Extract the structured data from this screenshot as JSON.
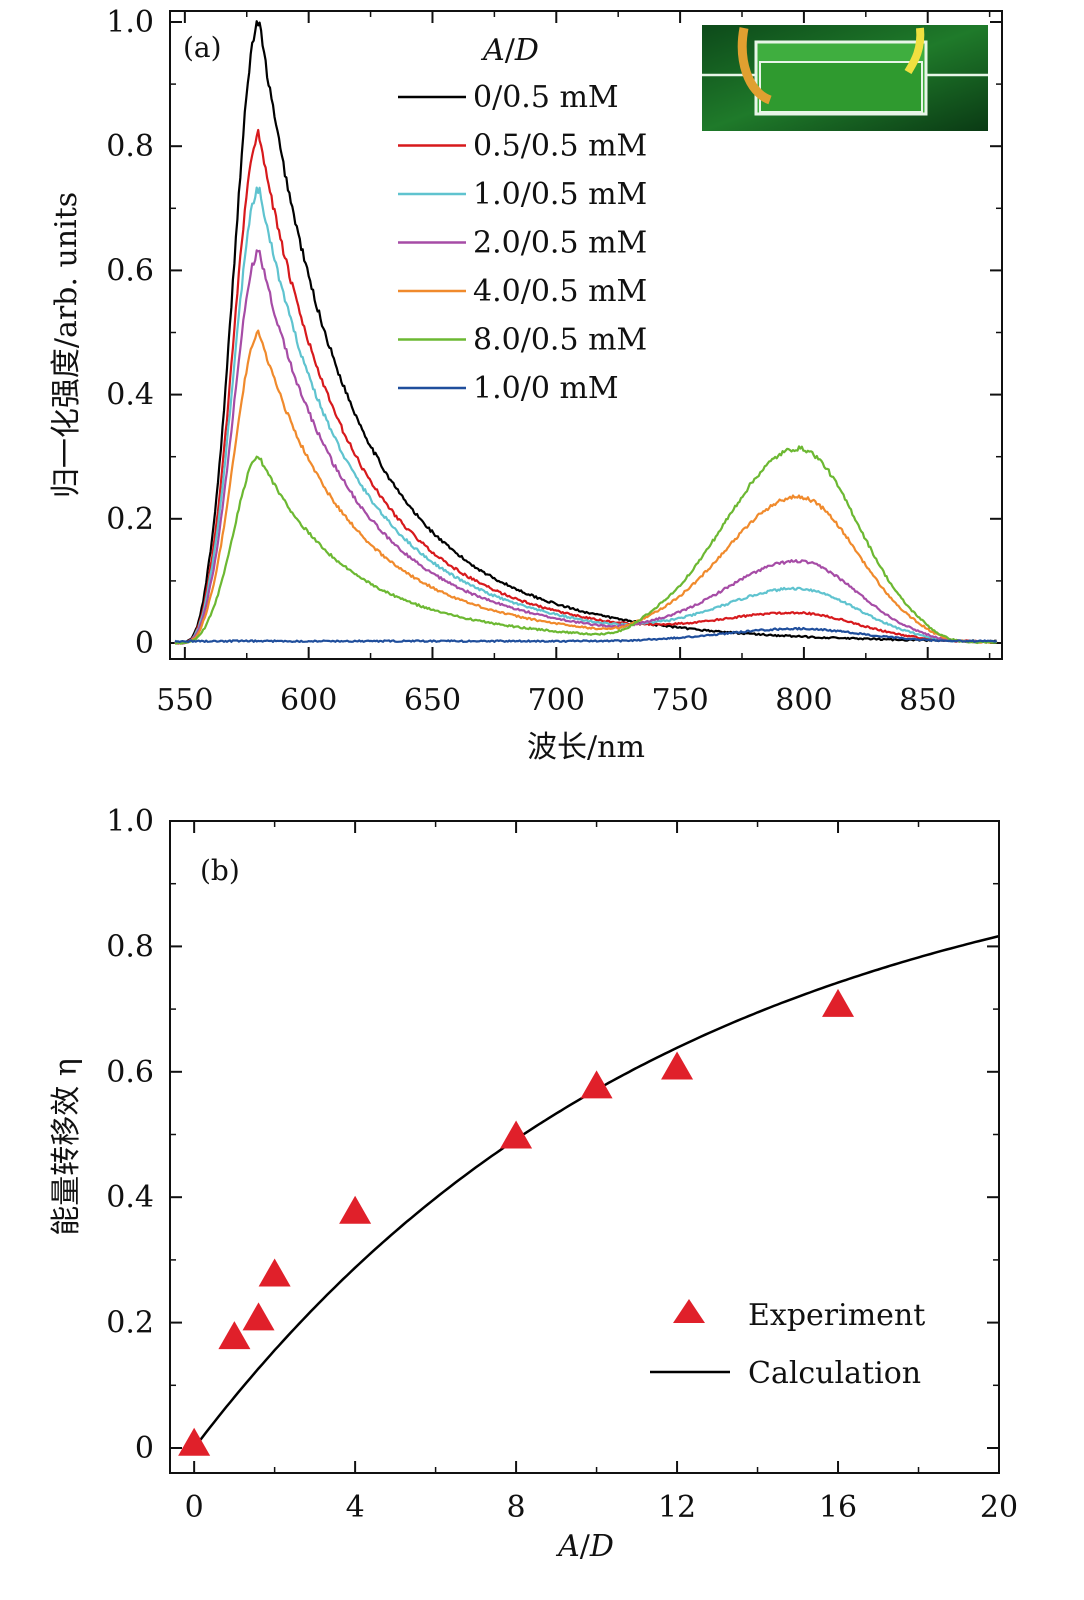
{
  "chart_data": [
    {
      "type": "line",
      "panel_label": "(a)",
      "xlabel": "波长/nm",
      "ylabel": "归一化强度/arb. units",
      "xlim": [
        544,
        880
      ],
      "ylim": [
        0,
        1.0
      ],
      "xticks": [
        550,
        600,
        650,
        700,
        750,
        800,
        850
      ],
      "yticks": [
        0,
        0.2,
        0.4,
        0.6,
        0.8,
        1.0
      ],
      "ytick_labels": [
        "0",
        "0.2",
        "0.4",
        "0.6",
        "0.8",
        "1.0"
      ],
      "legend_title": "A/D",
      "legend_title_num": "A",
      "legend_title_slash": "/",
      "legend_title_den": "D",
      "legend_position": "top-center",
      "inset": "green fluorescent microfluidic channel photo (top-right)",
      "series": [
        {
          "name": "0/0.5 mM",
          "color": "#000000",
          "peak1": 1.0,
          "peak2": 0.0,
          "tail700": 0.022
        },
        {
          "name": "0.5/0.5 mM",
          "color": "#d7191c",
          "peak1": 0.82,
          "peak2": 0.04,
          "tail700": 0.018
        },
        {
          "name": "1.0/0.5 mM",
          "color": "#5fc3cf",
          "peak1": 0.73,
          "peak2": 0.08,
          "tail700": 0.016
        },
        {
          "name": "2.0/0.5 mM",
          "color": "#a64ca6",
          "peak1": 0.63,
          "peak2": 0.125,
          "tail700": 0.014
        },
        {
          "name": "4.0/0.5 mM",
          "color": "#f08a2c",
          "peak1": 0.5,
          "peak2": 0.23,
          "tail700": 0.012
        },
        {
          "name": "8.0/0.5 mM",
          "color": "#6cb832",
          "peak1": 0.3,
          "peak2": 0.31,
          "tail700": 0.008
        },
        {
          "name": "1.0/0 mM",
          "color": "#1f4e9c",
          "peak1": 0.0,
          "peak2": 0.02,
          "tail700": 0.0
        }
      ]
    },
    {
      "type": "scatter",
      "panel_label": "(b)",
      "xlabel": "A/D",
      "xlabel_num": "A",
      "xlabel_slash": "/",
      "xlabel_den": "D",
      "ylabel": "能量转移效 η",
      "xlim": [
        -0.6,
        20
      ],
      "ylim": [
        0,
        1.0
      ],
      "xticks": [
        0,
        4,
        8,
        12,
        16,
        20
      ],
      "yticks": [
        0,
        0.2,
        0.4,
        0.6,
        0.8,
        1.0
      ],
      "ytick_labels": [
        "0",
        "0.2",
        "0.4",
        "0.6",
        "0.8",
        "1.0"
      ],
      "legend_position": "bottom-right",
      "series": [
        {
          "name": "Experiment",
          "marker": "triangle",
          "color": "#e0202a",
          "x": [
            0,
            1,
            1.6,
            2,
            4,
            8,
            10,
            12,
            16
          ],
          "y": [
            0.01,
            0.18,
            0.21,
            0.28,
            0.38,
            0.5,
            0.58,
            0.61,
            0.71
          ]
        },
        {
          "name": "Calculation",
          "color": "#000000",
          "curve": "1 - exp(-x/11.8)"
        }
      ]
    }
  ]
}
